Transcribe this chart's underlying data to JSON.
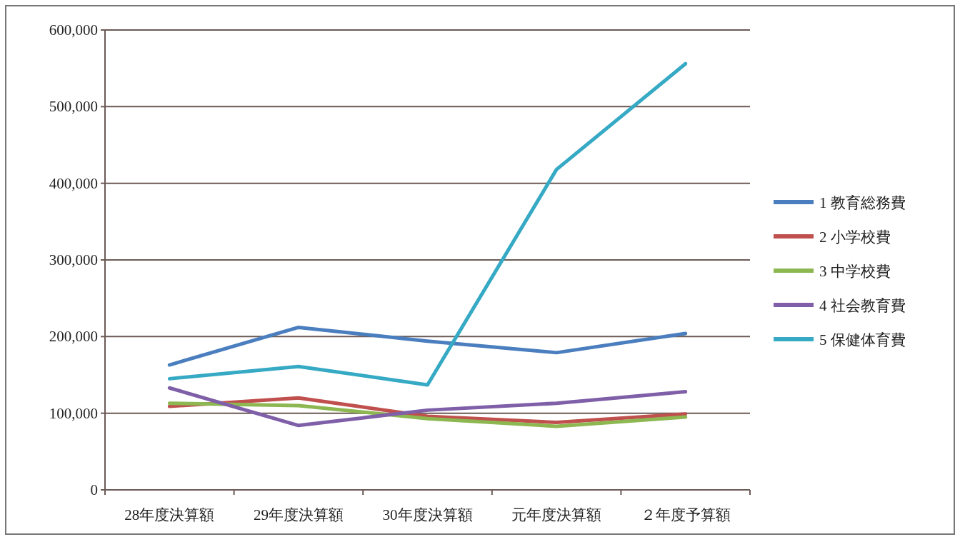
{
  "chart_data": {
    "type": "line",
    "categories": [
      "28年度決算額",
      "29年度決算額",
      "30年度決算額",
      "元年度決算額",
      "２年度予算額"
    ],
    "series": [
      {
        "name": "1 教育総務費",
        "color": "#4a7ebf",
        "values": [
          163000,
          212000,
          194000,
          179000,
          204000
        ]
      },
      {
        "name": "2 小学校費",
        "color": "#c0504d",
        "values": [
          109000,
          120000,
          96000,
          88000,
          99000
        ]
      },
      {
        "name": "3 中学校費",
        "color": "#8db751",
        "values": [
          113000,
          110000,
          93000,
          83000,
          95000
        ]
      },
      {
        "name": "4 社会教育費",
        "color": "#7e5fa8",
        "values": [
          133000,
          84000,
          104000,
          113000,
          128000
        ]
      },
      {
        "name": "5 保健体育費",
        "color": "#36a9c4",
        "values": [
          145000,
          161000,
          137000,
          418000,
          556000
        ]
      }
    ],
    "ylim": [
      0,
      600000
    ],
    "yticks": [
      {
        "value": 0,
        "label": "0"
      },
      {
        "value": 100000,
        "label": "100,000"
      },
      {
        "value": 200000,
        "label": "200,000"
      },
      {
        "value": 300000,
        "label": "300,000"
      },
      {
        "value": 400000,
        "label": "400,000"
      },
      {
        "value": 500000,
        "label": "500,000"
      },
      {
        "value": 600000,
        "label": "600,000"
      }
    ],
    "grid": "y",
    "legend": "right",
    "line_style": "solid",
    "marker": "none"
  }
}
